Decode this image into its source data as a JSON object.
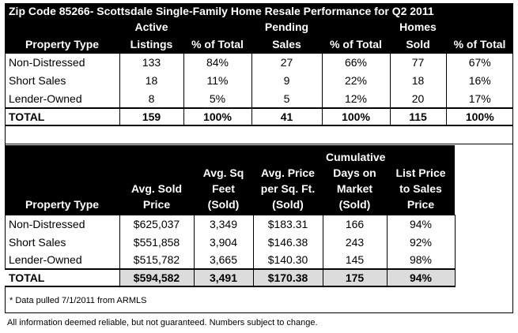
{
  "table1": {
    "title": "Zip Code 85266- Scottsdale Single-Family Home Resale Performance for Q2 2011",
    "group_headers": [
      "Active",
      "Pending",
      "Homes"
    ],
    "column_headers": [
      "Property Type",
      "Listings",
      "% of Total",
      "Sales",
      "% of Total",
      "Sold",
      "% of Total"
    ],
    "rows": [
      [
        "Non-Distressed",
        "133",
        "84%",
        "27",
        "66%",
        "77",
        "67%"
      ],
      [
        "Short Sales",
        "18",
        "11%",
        "9",
        "22%",
        "18",
        "16%"
      ],
      [
        "Lender-Owned",
        "8",
        "5%",
        "5",
        "12%",
        "20",
        "17%"
      ]
    ],
    "total": [
      "TOTAL",
      "159",
      "100%",
      "41",
      "100%",
      "115",
      "100%"
    ]
  },
  "table2": {
    "column_headers": [
      "Property Type",
      "Avg. Sold Price",
      "Avg. Sq Feet (Sold)",
      "Avg. Price per Sq. Ft. (Sold)",
      "Cumulative Days on Market (Sold)",
      "List Price to Sales Price"
    ],
    "rows": [
      [
        "Non-Distressed",
        "$625,037",
        "3,349",
        "$183.31",
        "166",
        "94%"
      ],
      [
        "Short Sales",
        "$551,858",
        "3,904",
        "$146.38",
        "243",
        "92%"
      ],
      [
        "Lender-Owned",
        "$515,782",
        "3,665",
        "$140.30",
        "145",
        "98%"
      ]
    ],
    "total": [
      "TOTAL",
      "$594,582",
      "3,491",
      "$170.38",
      "175",
      "94%"
    ]
  },
  "footnote": "* Data pulled 7/1/2011 from ARMLS",
  "disclaimer": "All information deemed reliable, but not guaranteed. Numbers subject to change.",
  "colors": {
    "header_bg": "#000000",
    "header_text": "#ffffff",
    "total_shade": "#dcdcdc"
  }
}
